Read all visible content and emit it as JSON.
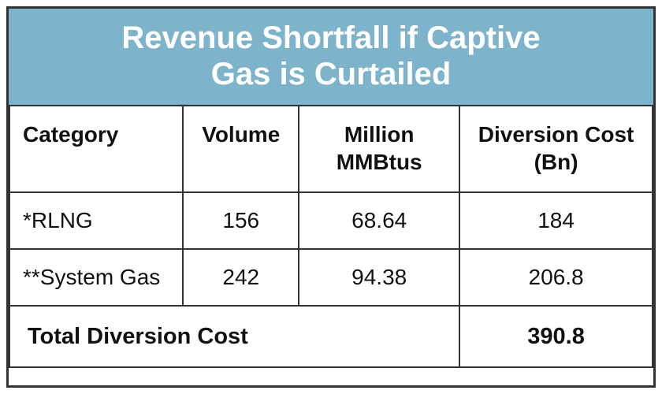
{
  "title_line1": "Revenue Shortfall if Captive",
  "title_line2": "Gas is Curtailed",
  "columns": {
    "category": "Category",
    "volume": "Volume",
    "mmbtus_line1": "Million",
    "mmbtus_line2": "MMBtus",
    "diversion_line1": "Diversion Cost",
    "diversion_line2": "(Bn)"
  },
  "rows": [
    {
      "category": "*RLNG",
      "volume": "156",
      "mmbtus": "68.64",
      "diversion": "184"
    },
    {
      "category": " **System Gas",
      "volume": "242",
      "mmbtus": "94.38",
      "diversion": "206.8"
    }
  ],
  "total": {
    "label": "Total Diversion Cost",
    "value": "390.8"
  },
  "style": {
    "type": "table",
    "title_bg": "#7db4cc",
    "title_color": "#ffffff",
    "title_fontsize": 40,
    "border_color": "#333333",
    "border_width": 2,
    "cell_fontsize": 28,
    "text_color": "#111111",
    "background_color": "#ffffff",
    "column_widths_pct": [
      27,
      18,
      25,
      30
    ],
    "column_align": [
      "left",
      "center",
      "center",
      "center"
    ],
    "total_fontweight": "bold"
  }
}
